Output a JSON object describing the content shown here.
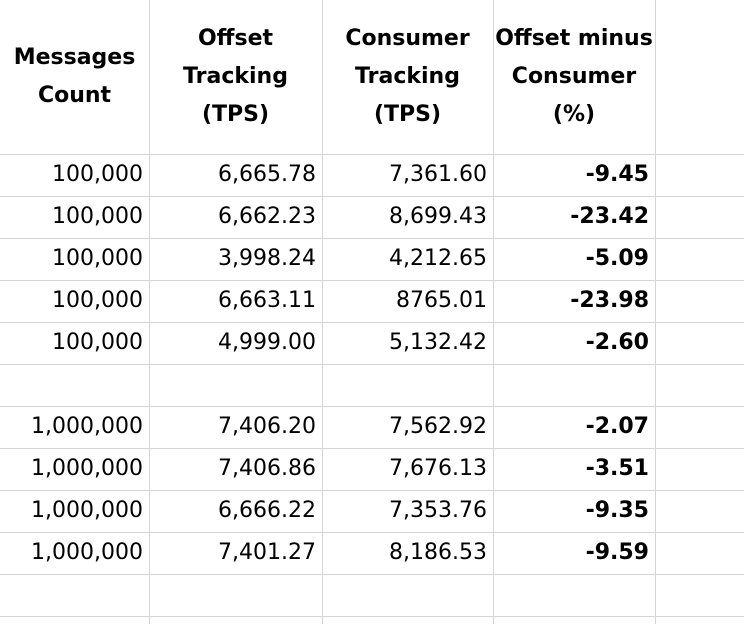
{
  "headers": {
    "messages_count": "Messages\nCount",
    "offset_tracking": "Offset\nTracking\n(TPS)",
    "consumer_tracking": "Consumer\nTracking\n(TPS)",
    "offset_minus_consumer": "Offset minus\nConsumer\n(%)"
  },
  "rows": [
    {
      "messages": "100,000",
      "offset": "6,665.78",
      "consumer": "7,361.60",
      "diff": "-9.45"
    },
    {
      "messages": "100,000",
      "offset": "6,662.23",
      "consumer": "8,699.43",
      "diff": "-23.42"
    },
    {
      "messages": "100,000",
      "offset": "3,998.24",
      "consumer": "4,212.65",
      "diff": "-5.09"
    },
    {
      "messages": "100,000",
      "offset": "6,663.11",
      "consumer": "8765.01",
      "diff": "-23.98"
    },
    {
      "messages": "100,000",
      "offset": "4,999.00",
      "consumer": "5,132.42",
      "diff": "-2.60"
    },
    {
      "messages": "",
      "offset": "",
      "consumer": "",
      "diff": ""
    },
    {
      "messages": "1,000,000",
      "offset": "7,406.20",
      "consumer": "7,562.92",
      "diff": "-2.07"
    },
    {
      "messages": "1,000,000",
      "offset": "7,406.86",
      "consumer": "7,676.13",
      "diff": "-3.51"
    },
    {
      "messages": "1,000,000",
      "offset": "6,666.22",
      "consumer": "7,353.76",
      "diff": "-9.35"
    },
    {
      "messages": "1,000,000",
      "offset": "7,401.27",
      "consumer": "8,186.53",
      "diff": "-9.59"
    },
    {
      "messages": "",
      "offset": "",
      "consumer": "",
      "diff": ""
    }
  ]
}
